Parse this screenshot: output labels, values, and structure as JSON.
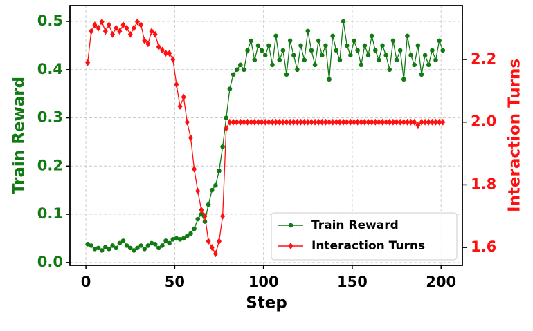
{
  "chart_data": {
    "type": "line",
    "xlabel": "Step",
    "ylabel": "Train Reward",
    "y2label": "Interaction Turns",
    "x": [
      1,
      3,
      5,
      7,
      9,
      11,
      13,
      15,
      17,
      19,
      21,
      23,
      25,
      27,
      29,
      31,
      33,
      35,
      37,
      39,
      41,
      43,
      45,
      47,
      49,
      51,
      53,
      55,
      57,
      59,
      61,
      63,
      65,
      67,
      69,
      71,
      73,
      75,
      77,
      79,
      81,
      83,
      85,
      87,
      89,
      91,
      93,
      95,
      97,
      99,
      101,
      103,
      105,
      107,
      109,
      111,
      113,
      115,
      117,
      119,
      121,
      123,
      125,
      127,
      129,
      131,
      133,
      135,
      137,
      139,
      141,
      143,
      145,
      147,
      149,
      151,
      153,
      155,
      157,
      159,
      161,
      163,
      165,
      167,
      169,
      171,
      173,
      175,
      177,
      179,
      181,
      183,
      185,
      187,
      189,
      191,
      193,
      195,
      197,
      199,
      201
    ],
    "series": [
      {
        "name": "Train Reward",
        "color": "#127a12",
        "marker": "circle",
        "axis": "y",
        "values": [
          0.038,
          0.035,
          0.028,
          0.03,
          0.025,
          0.032,
          0.028,
          0.035,
          0.03,
          0.04,
          0.045,
          0.035,
          0.03,
          0.025,
          0.03,
          0.035,
          0.028,
          0.035,
          0.04,
          0.038,
          0.03,
          0.035,
          0.045,
          0.04,
          0.048,
          0.05,
          0.048,
          0.05,
          0.055,
          0.06,
          0.07,
          0.09,
          0.1,
          0.085,
          0.12,
          0.15,
          0.16,
          0.19,
          0.24,
          0.3,
          0.36,
          0.39,
          0.4,
          0.41,
          0.4,
          0.44,
          0.46,
          0.42,
          0.45,
          0.44,
          0.43,
          0.45,
          0.41,
          0.47,
          0.42,
          0.44,
          0.39,
          0.46,
          0.43,
          0.4,
          0.45,
          0.42,
          0.48,
          0.44,
          0.41,
          0.46,
          0.43,
          0.45,
          0.38,
          0.47,
          0.44,
          0.42,
          0.5,
          0.45,
          0.43,
          0.46,
          0.44,
          0.41,
          0.45,
          0.43,
          0.47,
          0.44,
          0.42,
          0.45,
          0.43,
          0.4,
          0.46,
          0.42,
          0.44,
          0.38,
          0.47,
          0.43,
          0.41,
          0.45,
          0.39,
          0.43,
          0.41,
          0.44,
          0.42,
          0.46,
          0.44
        ]
      },
      {
        "name": "Interaction Turns",
        "color": "#ff1010",
        "marker": "diamond",
        "axis": "y2",
        "values": [
          2.19,
          2.29,
          2.31,
          2.3,
          2.32,
          2.29,
          2.31,
          2.28,
          2.3,
          2.29,
          2.31,
          2.3,
          2.28,
          2.3,
          2.32,
          2.31,
          2.26,
          2.25,
          2.29,
          2.28,
          2.24,
          2.23,
          2.22,
          2.22,
          2.2,
          2.12,
          2.05,
          2.08,
          2.0,
          1.95,
          1.85,
          1.78,
          1.72,
          1.7,
          1.62,
          1.6,
          1.58,
          1.62,
          1.7,
          1.98,
          2.0,
          2.0,
          2.0,
          2.0,
          2.0,
          2.0,
          2.0,
          2.0,
          2.0,
          2.0,
          2.0,
          2.0,
          2.0,
          2.0,
          2.0,
          2.0,
          2.0,
          2.0,
          2.0,
          2.0,
          2.0,
          2.0,
          2.0,
          2.0,
          2.0,
          2.0,
          2.0,
          2.0,
          2.0,
          2.0,
          2.0,
          2.0,
          2.0,
          2.0,
          2.0,
          2.0,
          2.0,
          2.0,
          2.0,
          2.0,
          2.0,
          2.0,
          2.0,
          2.0,
          2.0,
          2.0,
          2.0,
          2.0,
          2.0,
          2.0,
          2.0,
          2.0,
          2.0,
          1.99,
          2.0,
          2.0,
          2.0,
          2.0,
          2.0,
          2.0,
          2.0
        ]
      }
    ],
    "xlim": [
      -9,
      212
    ],
    "xticks": [
      0,
      50,
      100,
      150,
      200
    ],
    "ylim": [
      -0.006,
      0.533
    ],
    "yticks": [
      {
        "value": 0,
        "label": "0.0"
      },
      0.1,
      0.2,
      0.3,
      0.4,
      0.5
    ],
    "y2lim": [
      1.543,
      2.372
    ],
    "y2ticks": [
      1.6,
      1.8,
      {
        "value": 2,
        "label": "2.0"
      },
      2.2
    ],
    "grid": true,
    "legend": "lower right"
  }
}
